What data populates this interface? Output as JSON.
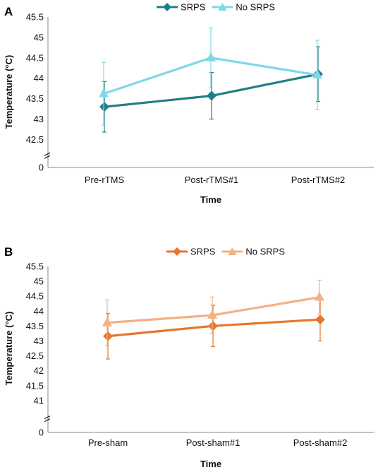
{
  "chart_data": [
    {
      "panel_label": "A",
      "type": "line",
      "categories": [
        "Pre-rTMS",
        "Post-rTMS#1",
        "Post-rTMS#2"
      ],
      "xlabel": "Time",
      "ylabel": "Temperature (°C)",
      "ylim": [
        42.5,
        45.5
      ],
      "y_break": true,
      "y_ticks": [
        "45.5",
        "45",
        "44.5",
        "44",
        "43.5",
        "43",
        "42.5",
        "0"
      ],
      "legend_position": "top",
      "grid": false,
      "series": [
        {
          "name": "SRPS",
          "color": "#1f7f86",
          "marker": "diamond",
          "values": [
            43.3,
            43.57,
            44.1
          ],
          "error": [
            0.62,
            0.57,
            0.67
          ]
        },
        {
          "name": "No SRPS",
          "color": "#7fd8e6",
          "marker": "triangle",
          "values": [
            43.62,
            44.5,
            44.08
          ],
          "error": [
            0.77,
            0.73,
            0.85
          ]
        }
      ]
    },
    {
      "panel_label": "B",
      "type": "line",
      "categories": [
        "Pre-sham",
        "Post-sham#1",
        "Post-sham#2"
      ],
      "xlabel": "Time",
      "ylabel": "Temperature (°C)",
      "ylim": [
        40.5,
        45.5
      ],
      "y_break": true,
      "y_ticks": [
        "45.5",
        "45",
        "44.5",
        "44",
        "43.5",
        "43",
        "42.5",
        "42",
        "41.5",
        "41",
        "0"
      ],
      "legend_position": "top",
      "grid": false,
      "series": [
        {
          "name": "SRPS",
          "color": "#e8762d",
          "marker": "diamond",
          "values": [
            42.9,
            43.28,
            43.52
          ],
          "error": [
            0.85,
            0.77,
            0.8
          ]
        },
        {
          "name": "No SRPS",
          "color": "#f4b183",
          "marker": "triangle",
          "values": [
            43.4,
            43.68,
            44.35
          ],
          "error": [
            0.85,
            0.68,
            0.63
          ]
        }
      ]
    }
  ]
}
